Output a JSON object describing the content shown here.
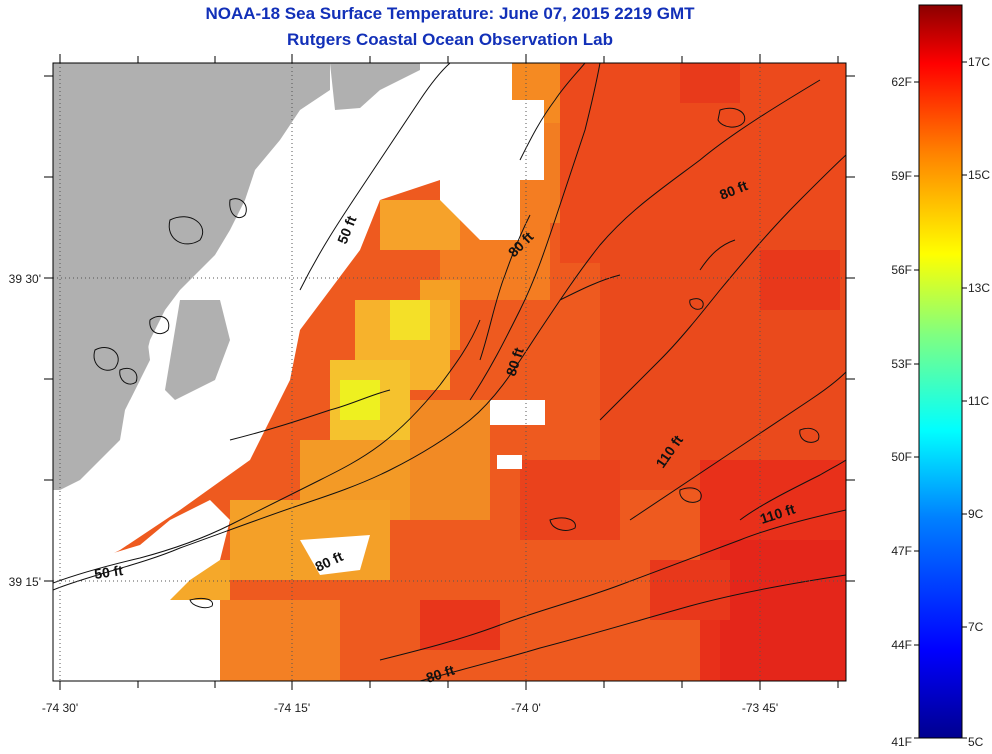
{
  "title": "NOAA-18 Sea Surface Temperature:  June 07, 2015 2219 GMT",
  "subtitle": "Rutgers Coastal Ocean Observation Lab",
  "axes": {
    "x_ticks": [
      "-74 30'",
      "-74 15'",
      "-74 0'",
      "-73 45'"
    ],
    "y_ticks": [
      "39 30'",
      "39 15'"
    ]
  },
  "contour_labels": {
    "c1": "50 ft",
    "c2": "80 ft",
    "c3": "80 ft",
    "c4": "80 ft",
    "c5": "80 ft",
    "c6": "110 ft",
    "c7": "110 ft",
    "c8": "50 ft",
    "c9": "80 ft"
  },
  "colorbar": {
    "f_labels": [
      "62F",
      "59F",
      "56F",
      "53F",
      "50F",
      "47F",
      "44F",
      "41F"
    ],
    "c_labels": [
      "17C",
      "15C",
      "13C",
      "11C",
      "9C",
      "7C",
      "5C"
    ]
  },
  "colors": {
    "land": "#b0b0b0",
    "no_data": "#ffffff",
    "title": "#1230b8"
  }
}
